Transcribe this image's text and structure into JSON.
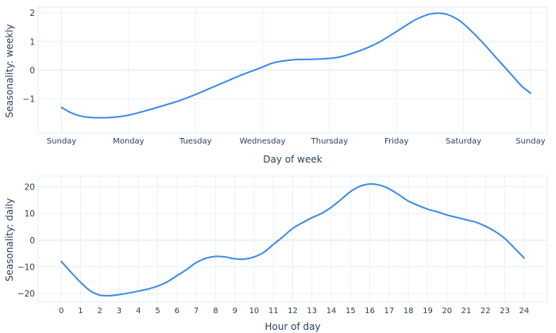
{
  "chart_data": [
    {
      "type": "line",
      "xlabel": "Day of week",
      "ylabel": "Seasonality: weekly",
      "x_ticks": [
        "Sunday",
        "Monday",
        "Tuesday",
        "Wednesday",
        "Thursday",
        "Friday",
        "Saturday",
        "Sunday"
      ],
      "xlim": [
        -0.35,
        7.25
      ],
      "ylim": [
        -2.2,
        2.2
      ],
      "y_ticks": [
        -1,
        0,
        1,
        2
      ],
      "grid": true,
      "line_color": "#3b8beb",
      "series": [
        {
          "x": [
            0,
            0.125,
            0.25,
            0.375,
            0.5,
            0.75,
            1,
            1.25,
            1.5,
            1.75,
            2,
            2.25,
            2.5,
            2.75,
            3,
            3.125,
            3.25,
            3.5,
            3.75,
            4,
            4.125,
            4.25,
            4.5,
            4.75,
            5,
            5.25,
            5.375,
            5.5,
            5.625,
            5.75,
            5.875,
            6,
            6.25,
            6.5,
            6.75,
            6.875,
            7
          ],
          "y": [
            -1.3,
            -1.47,
            -1.58,
            -1.64,
            -1.66,
            -1.65,
            -1.57,
            -1.42,
            -1.25,
            -1.07,
            -0.85,
            -0.6,
            -0.35,
            -0.11,
            0.11,
            0.23,
            0.3,
            0.37,
            0.38,
            0.41,
            0.45,
            0.52,
            0.72,
            0.99,
            1.35,
            1.72,
            1.86,
            1.96,
            1.99,
            1.95,
            1.82,
            1.62,
            1.05,
            0.4,
            -0.25,
            -0.57,
            -0.8
          ]
        }
      ]
    },
    {
      "type": "line",
      "xlabel": "Hour of day",
      "ylabel": "Seasonality: daily",
      "x_ticks": [
        "0",
        "1",
        "2",
        "3",
        "4",
        "5",
        "6",
        "7",
        "8",
        "9",
        "10",
        "11",
        "12",
        "13",
        "14",
        "15",
        "16",
        "17",
        "18",
        "19",
        "20",
        "21",
        "22",
        "23",
        "24"
      ],
      "xlim": [
        -1.2,
        25.2
      ],
      "ylim": [
        -23.2,
        24
      ],
      "y_ticks": [
        -20,
        -10,
        0,
        10,
        20
      ],
      "grid": true,
      "line_color": "#3b8beb",
      "series": [
        {
          "x": [
            0,
            0.5,
            1,
            1.5,
            2,
            2.5,
            3,
            3.5,
            4,
            4.5,
            5,
            5.5,
            6,
            6.5,
            7,
            7.5,
            8,
            8.5,
            9,
            9.5,
            10,
            10.5,
            11,
            11.5,
            12,
            12.5,
            13,
            13.5,
            14,
            14.5,
            15,
            15.5,
            16,
            16.5,
            17,
            17.5,
            18,
            18.5,
            19,
            19.5,
            20,
            20.5,
            21,
            21.5,
            22,
            22.5,
            23,
            23.5,
            24
          ],
          "y": [
            -8,
            -12,
            -15.8,
            -19,
            -20.6,
            -20.8,
            -20.4,
            -19.8,
            -19.1,
            -18.3,
            -17.2,
            -15.6,
            -13.3,
            -11,
            -8.4,
            -6.8,
            -6.1,
            -6.3,
            -7,
            -7.1,
            -6.3,
            -4.6,
            -1.6,
            1.3,
            4.4,
            6.5,
            8.4,
            10,
            12.3,
            15.2,
            18.2,
            20.2,
            21,
            20.6,
            19.2,
            17,
            14.6,
            13,
            11.6,
            10.6,
            9.4,
            8.5,
            7.6,
            6.7,
            5.2,
            3.2,
            0.6,
            -3,
            -6.7
          ]
        }
      ]
    }
  ]
}
